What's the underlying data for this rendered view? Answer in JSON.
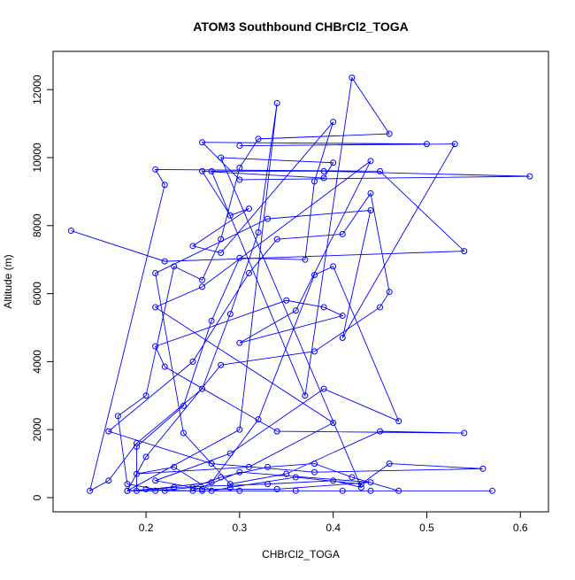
{
  "chart_data": {
    "type": "line",
    "title": "ATOM3 Southbound CHBrCl2_TOGA",
    "x_label": "CHBrCl2_TOGA",
    "y_label": "Altitude (m)",
    "color": "#0000ff",
    "markers": true,
    "x": [
      0.12,
      0.22,
      0.54,
      0.45,
      0.21,
      0.22,
      0.14,
      0.16,
      0.19,
      0.26,
      0.29,
      0.32,
      0.34,
      0.3,
      0.18,
      0.21,
      0.25,
      0.28,
      0.33,
      0.38,
      0.42,
      0.47,
      0.57,
      0.44,
      0.41,
      0.36,
      0.3,
      0.26,
      0.22,
      0.18,
      0.17,
      0.2,
      0.23,
      0.26,
      0.28,
      0.3,
      0.32,
      0.46,
      0.42,
      0.37,
      0.27,
      0.39,
      0.61,
      0.3,
      0.26,
      0.5,
      0.3,
      0.53,
      0.41,
      0.44,
      0.33,
      0.21,
      0.24,
      0.29,
      0.35,
      0.45,
      0.54,
      0.34,
      0.22,
      0.21,
      0.35,
      0.39,
      0.41,
      0.3,
      0.36,
      0.44,
      0.26,
      0.21,
      0.4,
      0.31,
      0.19,
      0.23,
      0.27,
      0.29,
      0.36,
      0.43,
      0.46,
      0.56,
      0.38,
      0.27,
      0.16,
      0.25,
      0.31,
      0.34,
      0.41,
      0.44,
      0.46,
      0.45,
      0.38,
      0.28,
      0.2,
      0.18,
      0.23,
      0.33,
      0.4,
      0.43,
      0.28,
      0.4,
      0.39,
      0.26,
      0.29,
      0.31,
      0.25,
      0.28,
      0.4,
      0.38,
      0.37,
      0.3,
      0.27,
      0.24,
      0.19,
      0.19,
      0.27,
      0.32,
      0.38,
      0.4,
      0.47,
      0.39,
      0.29,
      0.21,
      0.26,
      0.34,
      0.44,
      0.3,
      0.25,
      0.2
    ],
    "values": [
      7850,
      6950,
      7250,
      9600,
      9650,
      9200,
      200,
      500,
      1600,
      3200,
      5400,
      7800,
      11600,
      2000,
      200,
      200,
      300,
      600,
      900,
      1000,
      600,
      200,
      200,
      200,
      200,
      200,
      200,
      200,
      200,
      400,
      2400,
      3000,
      6800,
      6400,
      7600,
      9700,
      10550,
      10700,
      12350,
      3000,
      9600,
      9600,
      9450,
      9350,
      10450,
      10400,
      10350,
      10400,
      4700,
      8450,
      8200,
      6600,
      1900,
      400,
      700,
      1950,
      1900,
      1950,
      3850,
      4450,
      5800,
      5600,
      5350,
      4550,
      5500,
      9900,
      6200,
      5600,
      2200,
      900,
      700,
      900,
      200,
      300,
      600,
      400,
      1000,
      850,
      750,
      1000,
      1950,
      4000,
      6600,
      7600,
      7750,
      8950,
      6050,
      5600,
      4300,
      3900,
      1200,
      200,
      300,
      400,
      500,
      300,
      10000,
      9850,
      9400,
      9600,
      8300,
      8500,
      7400,
      7200,
      11050,
      9300,
      7000,
      7050,
      5200,
      2700,
      1500,
      200,
      450,
      2300,
      6550,
      6800,
      2250,
      3200,
      1300,
      500,
      250,
      250,
      450,
      750,
      200,
      250
    ],
    "xlim": [
      0.1007,
      0.63
    ],
    "ylim": [
      -417,
      13125
    ],
    "xticks": [
      0.2,
      0.3,
      0.4,
      0.5,
      0.6
    ],
    "yticks": [
      0,
      2000,
      4000,
      6000,
      8000,
      10000,
      12000
    ]
  }
}
